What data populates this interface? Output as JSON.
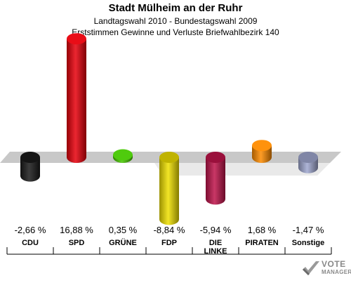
{
  "chart_data": {
    "type": "bar",
    "title": "Stadt Mülheim an der Ruhr",
    "subtitle_line1": "Landtagswahl 2010 - Bundestagswahl 2009",
    "subtitle_line2": "Erststimmen Gewinne und Verluste Briefwahlbezirk 140",
    "categories": [
      "CDU",
      "SPD",
      "GRÜNE",
      "FDP",
      "DIE\nLINKE",
      "PIRATEN",
      "Sonstige"
    ],
    "values": [
      -2.66,
      16.88,
      0.35,
      -8.84,
      -5.94,
      1.68,
      -1.47
    ],
    "value_labels": [
      "-2,66 %",
      "16,88 %",
      "0,35 %",
      "-8,84 %",
      "-5,94 %",
      "1,68 %",
      "-1,47 %"
    ],
    "colors": [
      "#1a1a1a",
      "#e8000b",
      "#46c800",
      "#f0e000",
      "#c0144b",
      "#ff8c00",
      "#a0a8d0"
    ],
    "ylim": [
      -9.5,
      17.5
    ]
  },
  "watermark": {
    "line1": "VOTE",
    "line2": "MANAGER"
  }
}
